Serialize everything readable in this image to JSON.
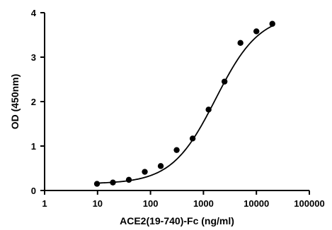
{
  "chart_data": {
    "type": "scatter",
    "xlabel": "ACE2(19-740)-Fc (ng/ml)",
    "ylabel": "OD (450nm)",
    "x_scale": "log",
    "xlim": [
      1,
      100000
    ],
    "ylim": [
      0,
      4
    ],
    "x_ticks": [
      1,
      10,
      100,
      1000,
      10000,
      100000
    ],
    "x_tick_labels": [
      "1",
      "10",
      "100",
      "1000",
      "10000",
      "100000"
    ],
    "y_ticks": [
      0,
      1,
      2,
      3,
      4
    ],
    "y_tick_labels": [
      "0",
      "1",
      "2",
      "3",
      "4"
    ],
    "grid": false,
    "series": [
      {
        "points": [
          {
            "x": 9.77,
            "y": 0.15
          },
          {
            "x": 19.5,
            "y": 0.18
          },
          {
            "x": 39,
            "y": 0.24
          },
          {
            "x": 78,
            "y": 0.42
          },
          {
            "x": 156,
            "y": 0.55
          },
          {
            "x": 312,
            "y": 0.91
          },
          {
            "x": 625,
            "y": 1.17
          },
          {
            "x": 1250,
            "y": 1.82
          },
          {
            "x": 2500,
            "y": 2.45
          },
          {
            "x": 5000,
            "y": 3.32
          },
          {
            "x": 10000,
            "y": 3.58
          },
          {
            "x": 20000,
            "y": 3.75
          }
        ]
      }
    ],
    "fit": {
      "model": "4PL",
      "bottom": 0.15,
      "top": 3.97,
      "ec50": 1700,
      "hill": 1.05,
      "x_range": [
        9.77,
        20000
      ]
    }
  }
}
